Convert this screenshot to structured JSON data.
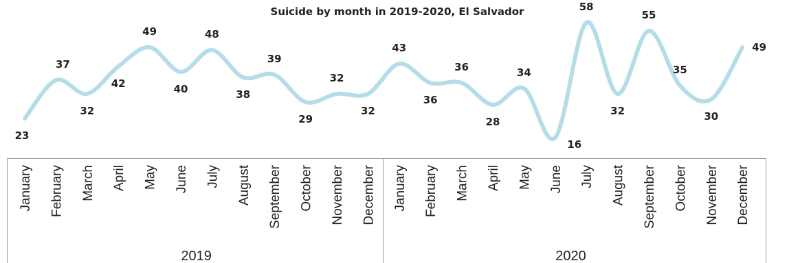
{
  "chart_data": {
    "type": "line",
    "title": "Suicide by month in 2019-2020, El Salvador",
    "xlabel": "",
    "ylabel": "",
    "categories": [
      "January",
      "February",
      "March",
      "April",
      "May",
      "June",
      "July",
      "August",
      "September",
      "October",
      "November",
      "December",
      "January",
      "February",
      "March",
      "April",
      "May",
      "June",
      "July",
      "August",
      "September",
      "October",
      "November",
      "December"
    ],
    "groups": [
      {
        "label": "2019",
        "start": 0,
        "end": 11
      },
      {
        "label": "2020",
        "start": 12,
        "end": 23
      }
    ],
    "series": [
      {
        "values": [
          23,
          37,
          32,
          42,
          49,
          40,
          48,
          38,
          39,
          29,
          32,
          32,
          43,
          36,
          36,
          28,
          34,
          16,
          58,
          32,
          55,
          35,
          30,
          49
        ]
      }
    ],
    "data_labels": [
      "23",
      "37",
      "32",
      "42",
      "49",
      "40",
      "48",
      "38",
      "39",
      "29",
      "32",
      "32",
      "43",
      "36",
      "36",
      "28",
      "34",
      "16",
      "58",
      "32",
      "55",
      "35",
      "30",
      "49"
    ],
    "line_color": "#b5dde8",
    "grid": false,
    "legend": "none"
  }
}
